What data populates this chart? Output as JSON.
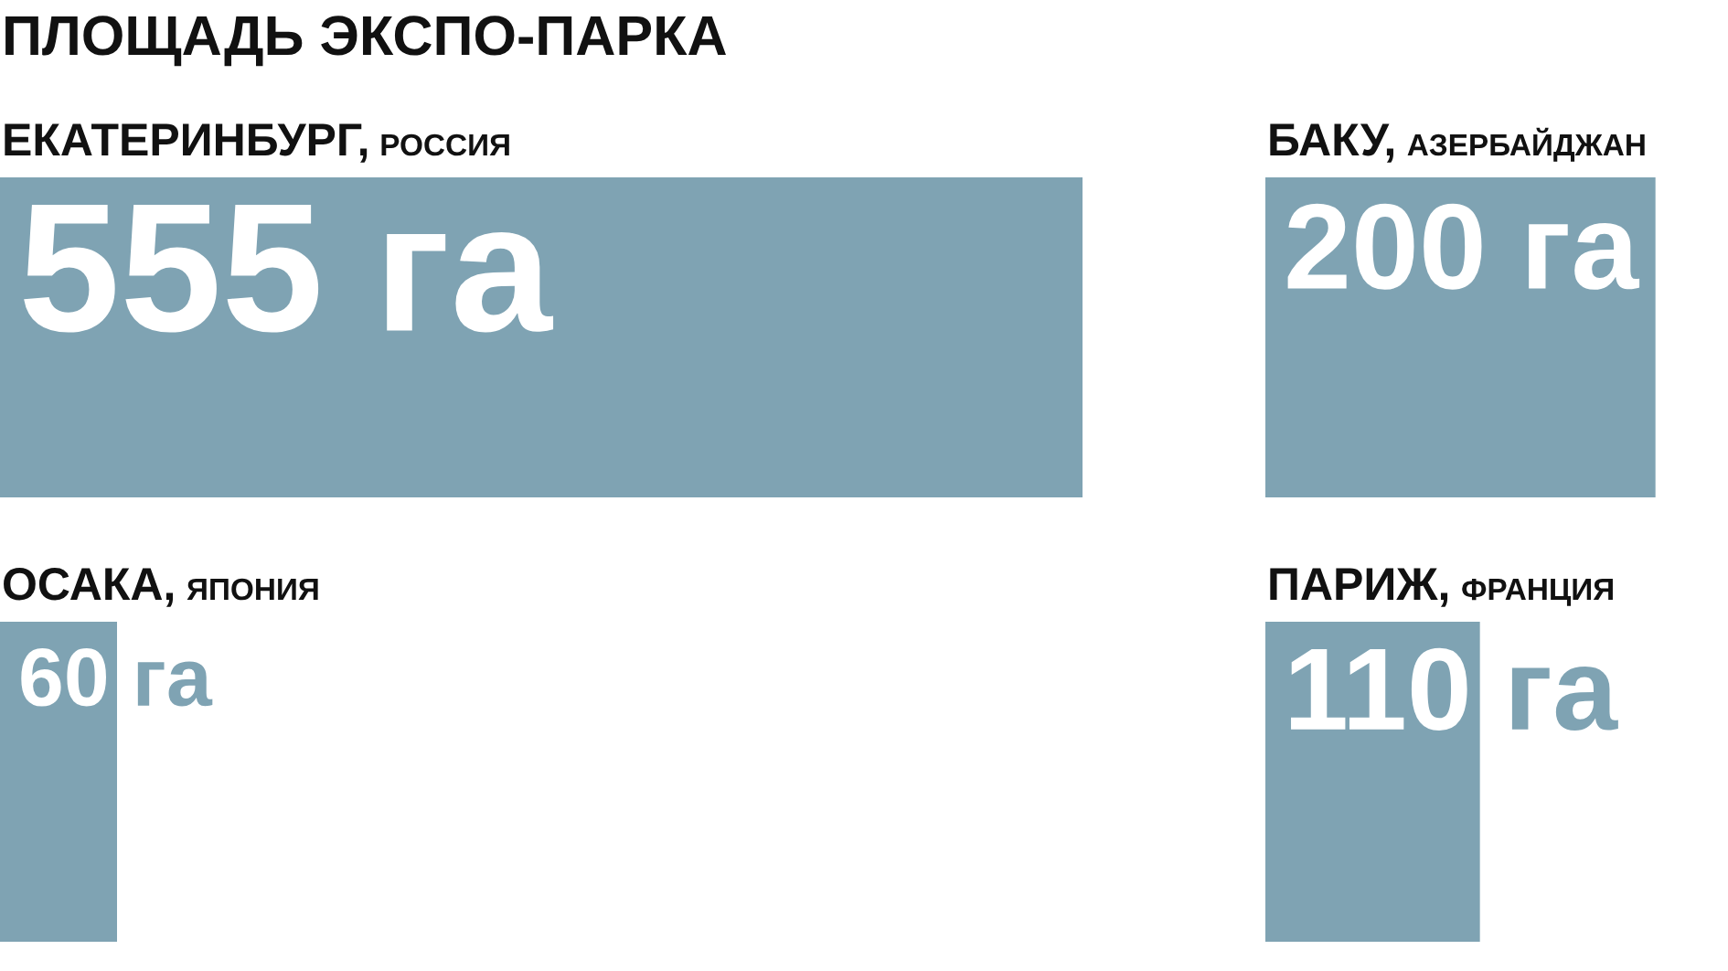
{
  "chart_data": [
    {
      "type": "bar",
      "title": "ПЛОЩАДЬ ЭКСПО-ПАРКА",
      "orientation": "horizontal",
      "categories": [
        "ЕКАТЕРИНБУРГ, РОССИЯ",
        "ОСАКА, ЯПОНИЯ"
      ],
      "values": [
        555,
        60
      ],
      "value_labels": [
        "555 га",
        "60 га"
      ],
      "color": "#7fa3b3"
    },
    {
      "type": "bar",
      "orientation": "horizontal",
      "categories": [
        "БАКУ, АЗЕРБАЙДЖАН",
        "ПАРИЖ, ФРАНЦИЯ"
      ],
      "values": [
        200,
        110
      ],
      "value_labels": [
        "200 га",
        "110 га"
      ],
      "color": "#7fa3b3"
    }
  ]
}
